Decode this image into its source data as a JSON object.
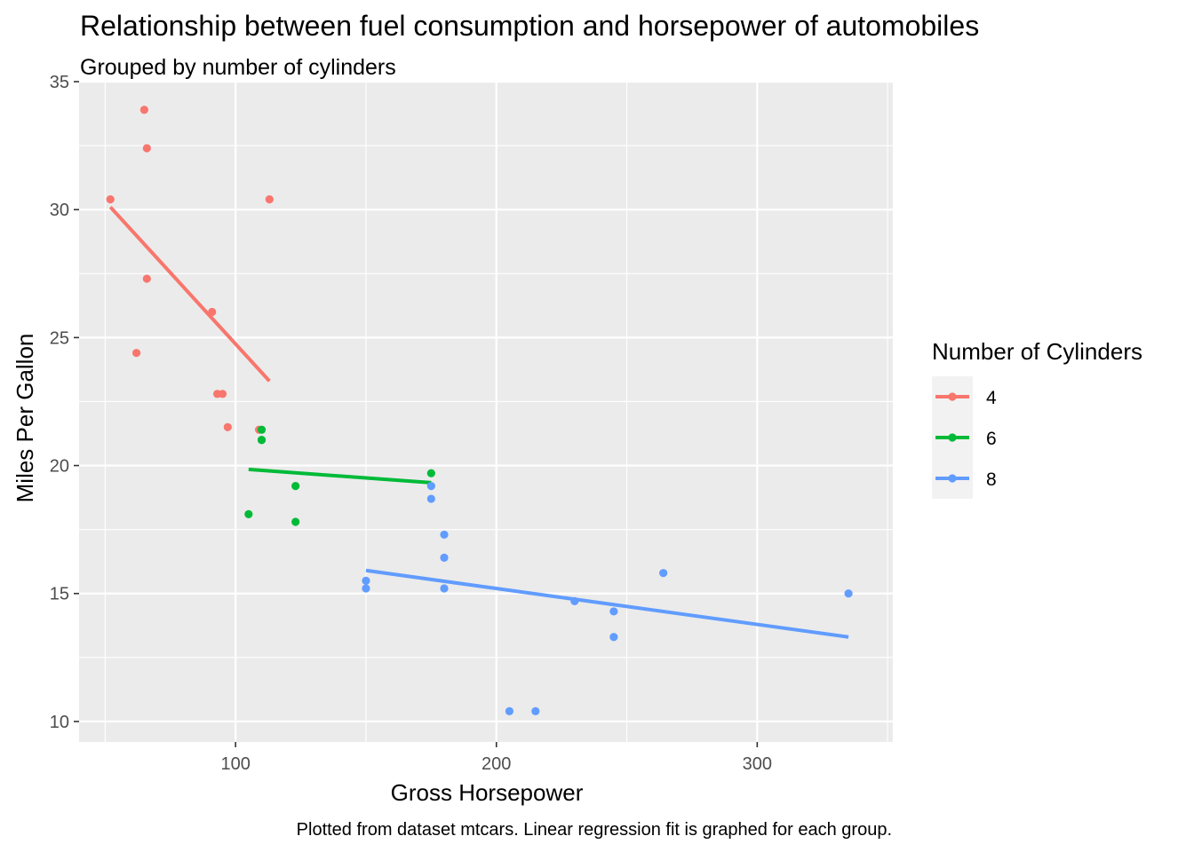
{
  "chart_data": {
    "type": "scatter",
    "title": "Relationship between fuel consumption and horsepower of automobiles",
    "subtitle": "Grouped by number of cylinders",
    "xlabel": "Gross Horsepower",
    "ylabel": "Miles Per Gallon",
    "caption": "Plotted from dataset mtcars. Linear regression fit is graphed for each group.",
    "xlim": [
      40,
      352
    ],
    "ylim": [
      9.2,
      35.0
    ],
    "x_ticks": [
      100,
      200,
      300
    ],
    "y_ticks": [
      10,
      15,
      20,
      25,
      30,
      35
    ],
    "x_tick_labels": [
      "100",
      "200",
      "300"
    ],
    "y_tick_labels": [
      "10",
      "15",
      "20",
      "25",
      "30",
      "35"
    ],
    "grid": true,
    "legend": {
      "title": "Number of Cylinders",
      "position": "right"
    },
    "series": [
      {
        "name": "4",
        "color": "#F8766D",
        "points": [
          {
            "x": 93,
            "y": 22.8
          },
          {
            "x": 62,
            "y": 24.4
          },
          {
            "x": 95,
            "y": 22.8
          },
          {
            "x": 66,
            "y": 32.4
          },
          {
            "x": 52,
            "y": 30.4
          },
          {
            "x": 65,
            "y": 33.9
          },
          {
            "x": 97,
            "y": 21.5
          },
          {
            "x": 66,
            "y": 27.3
          },
          {
            "x": 91,
            "y": 26.0
          },
          {
            "x": 113,
            "y": 30.4
          },
          {
            "x": 109,
            "y": 21.4
          }
        ],
        "fit": {
          "x": [
            52,
            113
          ],
          "y": [
            30.1,
            23.3
          ]
        }
      },
      {
        "name": "6",
        "color": "#00BA38",
        "points": [
          {
            "x": 110,
            "y": 21.0
          },
          {
            "x": 110,
            "y": 21.0
          },
          {
            "x": 110,
            "y": 21.4
          },
          {
            "x": 105,
            "y": 18.1
          },
          {
            "x": 123,
            "y": 19.2
          },
          {
            "x": 123,
            "y": 17.8
          },
          {
            "x": 175,
            "y": 19.7
          }
        ],
        "fit": {
          "x": [
            105,
            175
          ],
          "y": [
            19.85,
            19.33
          ]
        }
      },
      {
        "name": "8",
        "color": "#619CFF",
        "points": [
          {
            "x": 175,
            "y": 18.7
          },
          {
            "x": 245,
            "y": 14.3
          },
          {
            "x": 180,
            "y": 16.4
          },
          {
            "x": 180,
            "y": 17.3
          },
          {
            "x": 180,
            "y": 15.2
          },
          {
            "x": 205,
            "y": 10.4
          },
          {
            "x": 215,
            "y": 10.4
          },
          {
            "x": 230,
            "y": 14.7
          },
          {
            "x": 150,
            "y": 15.5
          },
          {
            "x": 150,
            "y": 15.2
          },
          {
            "x": 245,
            "y": 13.3
          },
          {
            "x": 175,
            "y": 19.2
          },
          {
            "x": 264,
            "y": 15.8
          },
          {
            "x": 335,
            "y": 15.0
          }
        ],
        "fit": {
          "x": [
            150,
            335
          ],
          "y": [
            15.9,
            13.3
          ]
        }
      }
    ]
  }
}
